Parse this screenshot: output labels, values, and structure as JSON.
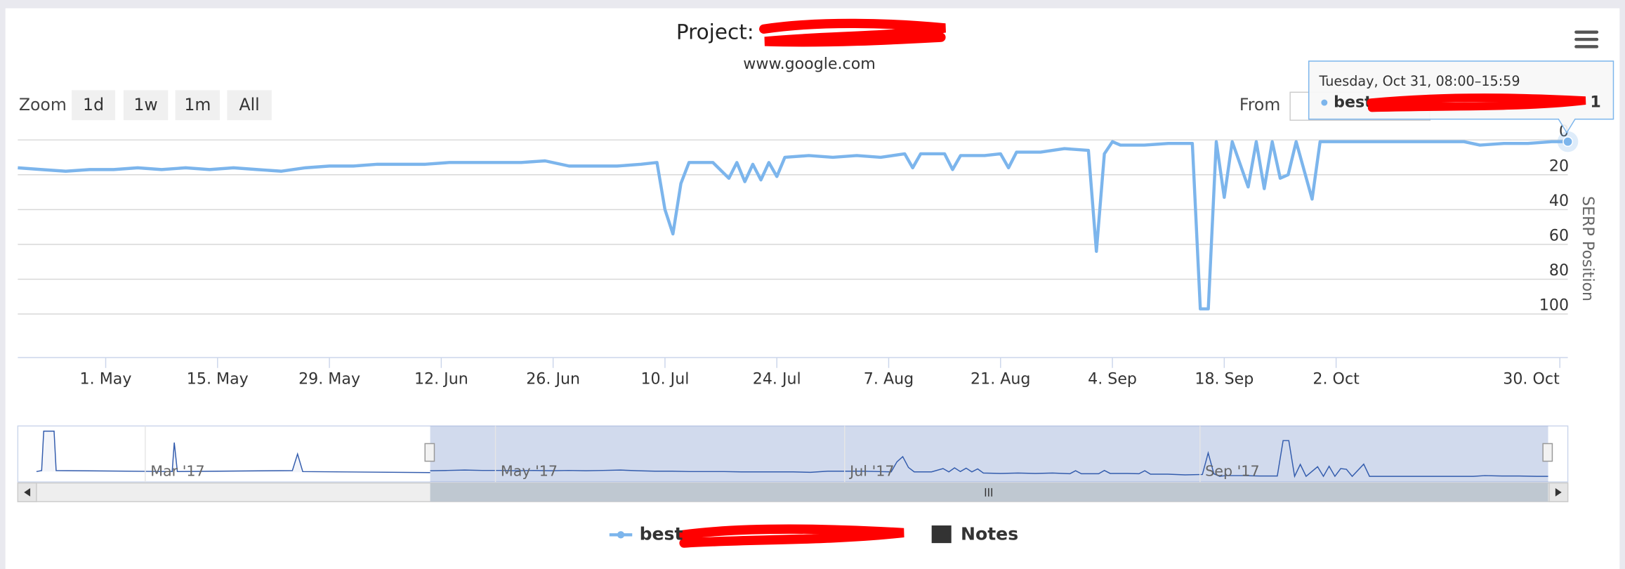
{
  "chart_data": {
    "type": "line",
    "title": "Project:",
    "subtitle": "www.google.com",
    "ylabel": "SERP Position",
    "x": [
      "20. Apr",
      "23. Apr",
      "26. Apr",
      "29. Apr",
      "2. May",
      "5. May",
      "8. May",
      "11. May",
      "14. May",
      "17. May",
      "20. May",
      "23. May",
      "26. May",
      "29. May",
      "1. Jun",
      "4. Jun",
      "7. Jun",
      "10. Jun",
      "13. Jun",
      "16. Jun",
      "19. Jun",
      "22. Jun",
      "25. Jun",
      "28. Jun",
      "1. Jul",
      "4. Jul",
      "7. Jul",
      "9. Jul",
      "10. Jul",
      "11. Jul",
      "12. Jul",
      "13. Jul",
      "16. Jul",
      "18. Jul",
      "19. Jul",
      "20. Jul",
      "21. Jul",
      "22. Jul",
      "23. Jul",
      "24. Jul",
      "25. Jul",
      "28. Jul",
      "31. Jul",
      "3. Aug",
      "6. Aug",
      "9. Aug",
      "10. Aug",
      "11. Aug",
      "14. Aug",
      "15. Aug",
      "16. Aug",
      "19. Aug",
      "21. Aug",
      "22. Aug",
      "23. Aug",
      "26. Aug",
      "29. Aug",
      "1. Sep",
      "2. Sep",
      "3. Sep",
      "4. Sep",
      "5. Sep",
      "8. Sep",
      "11. Sep",
      "14. Sep",
      "15. Sep",
      "16. Sep",
      "17. Sep",
      "18. Sep",
      "19. Sep",
      "21. Sep",
      "22. Sep",
      "23. Sep",
      "24. Sep",
      "25. Sep",
      "26. Sep",
      "27. Sep",
      "29. Sep",
      "30. Sep",
      "3. Oct",
      "8. Oct",
      "13. Oct",
      "18. Oct",
      "20. Oct",
      "23. Oct",
      "26. Oct",
      "29. Oct",
      "31. Oct"
    ],
    "series": [
      {
        "name": "best",
        "color": "#7cb5ec",
        "values": [
          16,
          17,
          18,
          17,
          17,
          16,
          17,
          16,
          17,
          16,
          17,
          18,
          16,
          15,
          15,
          14,
          14,
          14,
          13,
          13,
          13,
          13,
          12,
          15,
          15,
          15,
          14,
          13,
          40,
          54,
          25,
          13,
          13,
          22,
          13,
          24,
          14,
          23,
          13,
          21,
          10,
          9,
          10,
          9,
          10,
          8,
          16,
          8,
          8,
          17,
          9,
          9,
          8,
          16,
          7,
          7,
          5,
          6,
          64,
          8,
          1,
          3,
          3,
          2,
          2,
          97,
          97,
          1,
          33,
          1,
          27,
          1,
          28,
          1,
          22,
          20,
          1,
          34,
          1,
          1,
          1,
          1,
          1,
          3,
          2,
          2,
          1,
          1
        ]
      }
    ],
    "xlim": [
      "20. Apr",
      "31. Oct"
    ],
    "xticks": [
      "1. May",
      "15. May",
      "29. May",
      "12. Jun",
      "26. Jun",
      "10. Jul",
      "24. Jul",
      "7. Aug",
      "21. Aug",
      "4. Sep",
      "18. Sep",
      "2. Oct",
      "30. Oct"
    ],
    "ylim": [
      0,
      125
    ],
    "yticks": [
      0,
      20,
      40,
      60,
      80,
      100
    ],
    "y_reversed": true,
    "grid": true,
    "legend": "bottom"
  },
  "menu": {
    "zoom_label": "Zoom",
    "zoom_buttons": [
      "1d",
      "1w",
      "1m",
      "All"
    ],
    "from_label": "From"
  },
  "tooltip": {
    "header": "Tuesday, Oct 31, 08:00–15:59"
  },
  "navigator": {
    "labels": [
      "Mar '17",
      "May '17",
      "Jul '17",
      "Sep '17"
    ]
  },
  "legend_notes": "Notes"
}
